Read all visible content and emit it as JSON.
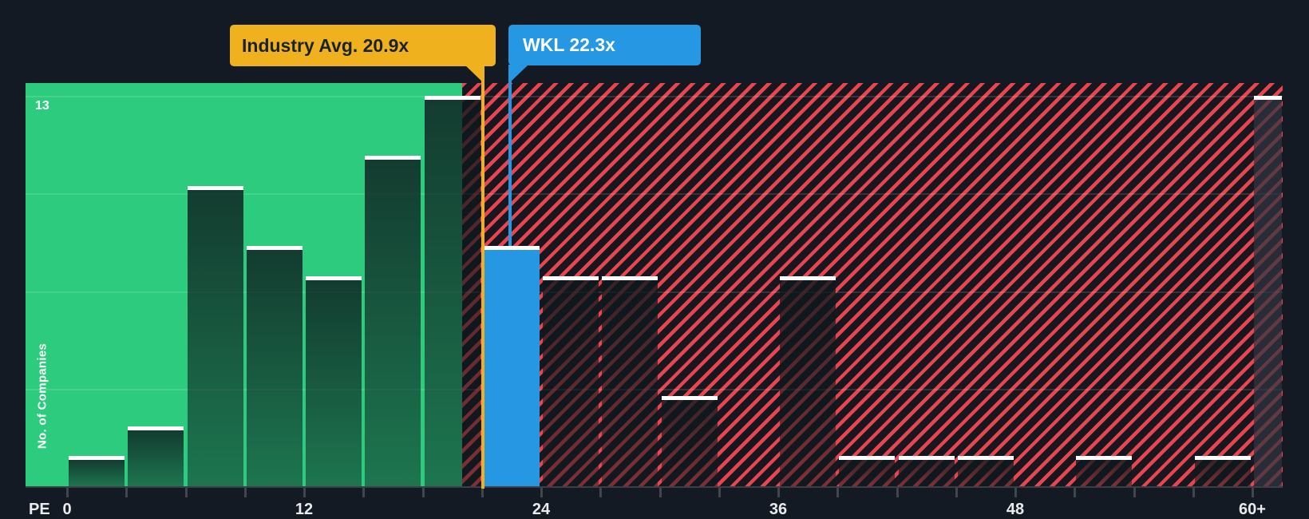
{
  "header_callouts": {
    "industry_avg": {
      "label": "Industry Avg. 20.9x",
      "value": 20.9
    },
    "company": {
      "label": "WKL 22.3x",
      "ticker": "WKL",
      "value": 22.3
    }
  },
  "y_axis": {
    "max_count_label": "13",
    "title": "No. of Companies"
  },
  "x_axis": {
    "title": "PE",
    "tick_labels": [
      "0",
      "12",
      "24",
      "36",
      "48",
      "60+"
    ]
  },
  "chart_data": {
    "type": "bar",
    "subtype": "histogram",
    "xlabel": "PE",
    "ylabel": "No. of Companies",
    "ylim": [
      0,
      13
    ],
    "bin_size": 3,
    "bin_labels": [
      "0-3",
      "3-6",
      "6-9",
      "9-12",
      "12-15",
      "15-18",
      "18-21",
      "21-24",
      "24-27",
      "27-30",
      "30-33",
      "33-36",
      "36-39",
      "39-42",
      "42-45",
      "45-48",
      "48-51",
      "51-54",
      "54-57",
      "57-60",
      "60+"
    ],
    "counts": [
      1,
      2,
      10,
      8,
      7,
      11,
      13,
      8,
      7,
      7,
      3,
      0,
      7,
      1,
      1,
      1,
      0,
      1,
      0,
      1,
      13
    ],
    "company_bin_index": 7,
    "markers": {
      "industry_avg_pe": 20.9,
      "company_pe": 22.3
    },
    "zones": {
      "below_average_end_pe": 20,
      "above_average_hatched": true
    },
    "grid": "faint horizontal quarter lines, top line labeled 13",
    "legend_position": "none"
  },
  "colors": {
    "background": "#141A23",
    "below_average_zone_green": "#2DCB7E",
    "hatch_stripe_red": "#E8454E",
    "hatch_background": "#18171F",
    "company_blue": "#2697E3",
    "industry_orange": "#EFB11D",
    "bar_top_line": "#FFFFFF",
    "axis_text": "#E9EBED"
  }
}
